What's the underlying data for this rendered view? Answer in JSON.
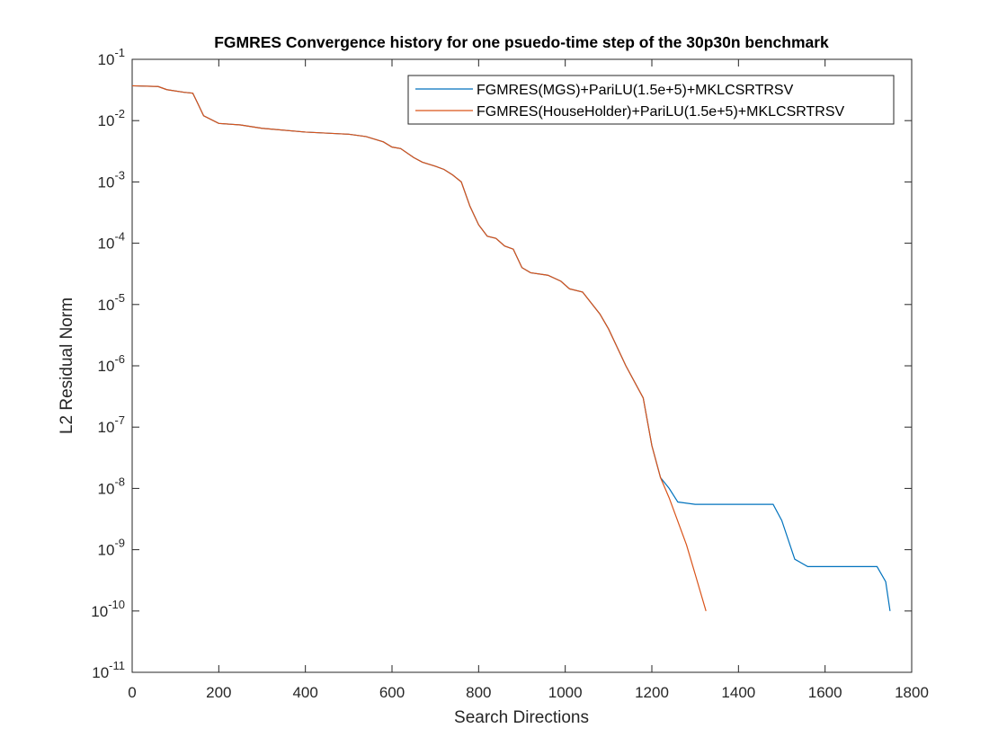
{
  "chart_data": {
    "type": "line",
    "title": "FGMRES Convergence history for one psuedo-time step of the 30p30n benchmark",
    "x_label": "Search Directions",
    "y_label": "L2 Residual Norm",
    "log_y": true,
    "legend_position": "upper-right",
    "xlim": [
      0,
      1800
    ],
    "xticks": [
      0,
      200,
      400,
      600,
      800,
      1000,
      1200,
      1400,
      1600,
      1800
    ],
    "ylim": [
      1e-11,
      0.1
    ],
    "yticks": [
      {
        "value": 1e-11,
        "label": "10^-11"
      },
      {
        "value": 1e-10,
        "label": "10^-10"
      },
      {
        "value": 1e-09,
        "label": "10^-9"
      },
      {
        "value": 1e-08,
        "label": "10^-8"
      },
      {
        "value": 1e-07,
        "label": "10^-7"
      },
      {
        "value": 1e-06,
        "label": "10^-6"
      },
      {
        "value": 1e-05,
        "label": "10^-5"
      },
      {
        "value": 0.0001,
        "label": "10^-4"
      },
      {
        "value": 0.001,
        "label": "10^-3"
      },
      {
        "value": 0.01,
        "label": "10^-2"
      },
      {
        "value": 0.1,
        "label": "10^-1"
      }
    ],
    "series": [
      {
        "name": "FGMRES(MGS)+PariLU(1.5e+5)+MKLCSRTRSV",
        "color": "#0072bd",
        "x": [
          0,
          60,
          80,
          120,
          140,
          150,
          165,
          200,
          250,
          300,
          400,
          500,
          540,
          580,
          600,
          620,
          650,
          670,
          700,
          720,
          740,
          760,
          780,
          800,
          820,
          840,
          860,
          880,
          900,
          920,
          960,
          990,
          1010,
          1040,
          1080,
          1100,
          1140,
          1180,
          1200,
          1220,
          1240,
          1260,
          1300,
          1480,
          1500,
          1530,
          1560,
          1720,
          1740,
          1750
        ],
        "values": [
          0.037,
          0.036,
          0.032,
          0.029,
          0.028,
          0.02,
          0.012,
          0.009,
          0.0085,
          0.0075,
          0.0065,
          0.006,
          0.0055,
          0.0045,
          0.0037,
          0.0035,
          0.0025,
          0.0021,
          0.0018,
          0.0016,
          0.0013,
          0.001,
          0.0004,
          0.0002,
          0.00013,
          0.00012,
          9e-05,
          8e-05,
          4e-05,
          3.3e-05,
          3e-05,
          2.4e-05,
          1.8e-05,
          1.6e-05,
          7e-06,
          4e-06,
          1e-06,
          3e-07,
          5e-08,
          1.5e-08,
          1e-08,
          6e-09,
          5.5e-09,
          5.5e-09,
          3e-09,
          7e-10,
          5.3e-10,
          5.3e-10,
          3e-10,
          1e-10
        ]
      },
      {
        "name": "FGMRES(HouseHolder)+PariLU(1.5e+5)+MKLCSRTRSV",
        "color": "#d95319",
        "x": [
          0,
          60,
          80,
          120,
          140,
          150,
          165,
          200,
          250,
          300,
          400,
          500,
          540,
          580,
          600,
          620,
          650,
          670,
          700,
          720,
          740,
          760,
          780,
          800,
          820,
          840,
          860,
          880,
          900,
          920,
          960,
          990,
          1010,
          1040,
          1080,
          1100,
          1140,
          1180,
          1200,
          1220,
          1240,
          1280,
          1300,
          1325
        ],
        "values": [
          0.037,
          0.036,
          0.032,
          0.029,
          0.028,
          0.02,
          0.012,
          0.009,
          0.0085,
          0.0075,
          0.0065,
          0.006,
          0.0055,
          0.0045,
          0.0037,
          0.0035,
          0.0025,
          0.0021,
          0.0018,
          0.0016,
          0.0013,
          0.001,
          0.0004,
          0.0002,
          0.00013,
          0.00012,
          9e-05,
          8e-05,
          4e-05,
          3.3e-05,
          3e-05,
          2.4e-05,
          1.8e-05,
          1.6e-05,
          7e-06,
          4e-06,
          1e-06,
          3e-07,
          5e-08,
          1.5e-08,
          7e-09,
          1.2e-09,
          4e-10,
          1e-10
        ]
      }
    ]
  }
}
